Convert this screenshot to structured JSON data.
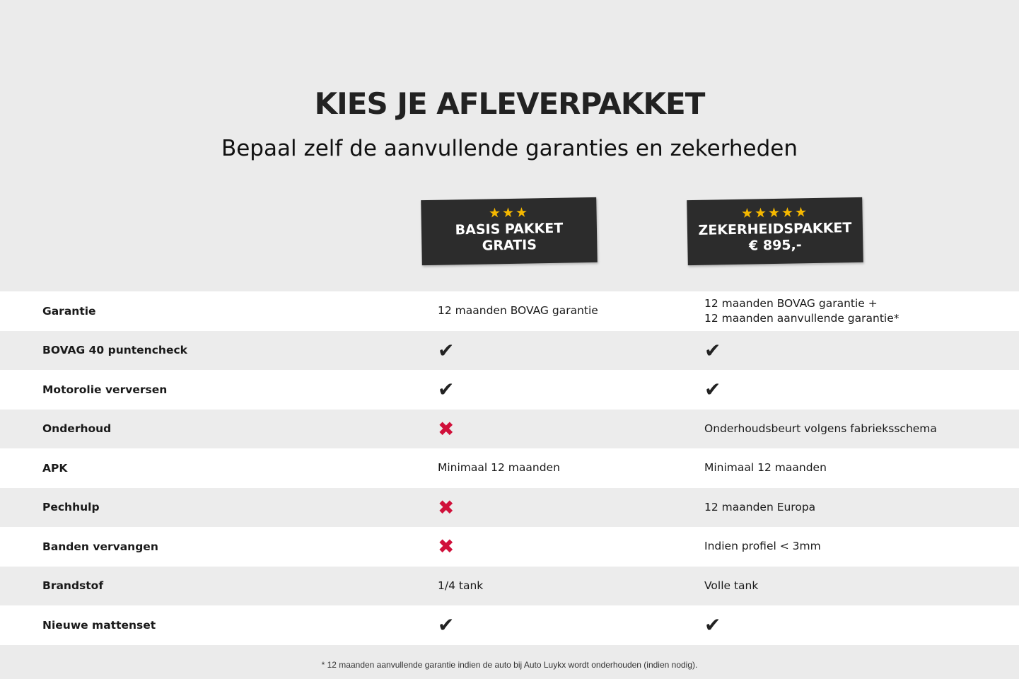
{
  "header": {
    "title": "KIES JE AFLEVERPAKKET",
    "subtitle": "Bepaal zelf de aanvullende garanties en zekerheden"
  },
  "packages": [
    {
      "stars": "★★★",
      "star_count": 3,
      "name": "BASIS PAKKET",
      "price": "GRATIS"
    },
    {
      "stars": "★★★★★",
      "star_count": 5,
      "name": "ZEKERHEIDSPAKKET",
      "price": "€ 895,-"
    }
  ],
  "colors": {
    "badge": "#2c2c2c",
    "star": "#f5b800",
    "cross": "#d0103a",
    "check": "#222222"
  },
  "rows": [
    {
      "label": "Garantie",
      "basis": {
        "type": "text",
        "text": "12 maanden BOVAG garantie"
      },
      "zeker": {
        "type": "text",
        "text": "12 maanden BOVAG garantie +\n12 maanden aanvullende garantie*"
      }
    },
    {
      "label": "BOVAG 40 puntencheck",
      "basis": {
        "type": "check",
        "text": "✔"
      },
      "zeker": {
        "type": "check",
        "text": "✔"
      }
    },
    {
      "label": "Motorolie verversen",
      "basis": {
        "type": "check",
        "text": "✔"
      },
      "zeker": {
        "type": "check",
        "text": "✔"
      }
    },
    {
      "label": "Onderhoud",
      "basis": {
        "type": "cross",
        "text": "✖"
      },
      "zeker": {
        "type": "text",
        "text": "Onderhoudsbeurt volgens fabrieksschema"
      }
    },
    {
      "label": "APK",
      "basis": {
        "type": "text",
        "text": "Minimaal 12 maanden"
      },
      "zeker": {
        "type": "text",
        "text": "Minimaal 12 maanden"
      }
    },
    {
      "label": "Pechhulp",
      "basis": {
        "type": "cross",
        "text": "✖"
      },
      "zeker": {
        "type": "text",
        "text": "12 maanden Europa"
      }
    },
    {
      "label": "Banden vervangen",
      "basis": {
        "type": "cross",
        "text": "✖"
      },
      "zeker": {
        "type": "text",
        "text": "Indien profiel < 3mm"
      }
    },
    {
      "label": "Brandstof",
      "basis": {
        "type": "text",
        "text": "1/4 tank"
      },
      "zeker": {
        "type": "text",
        "text": "Volle tank"
      }
    },
    {
      "label": "Nieuwe mattenset",
      "basis": {
        "type": "check",
        "text": "✔"
      },
      "zeker": {
        "type": "check",
        "text": "✔"
      }
    }
  ],
  "footnote": "* 12 maanden aanvullende garantie indien de auto bij Auto Luykx wordt onderhouden (indien nodig)."
}
